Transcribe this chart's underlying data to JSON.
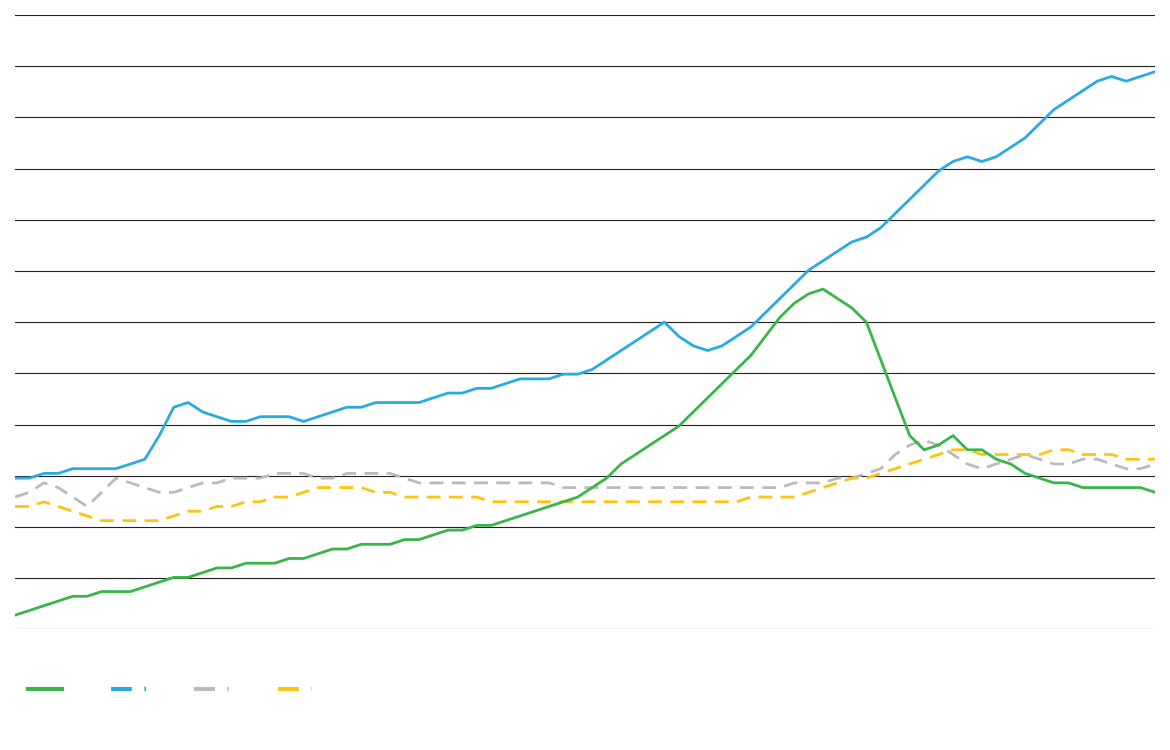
{
  "n_points": 80,
  "blue_line": [
    32,
    32,
    33,
    33,
    34,
    34,
    34,
    34,
    35,
    36,
    41,
    47,
    48,
    46,
    45,
    44,
    44,
    45,
    45,
    45,
    44,
    45,
    46,
    47,
    47,
    48,
    48,
    48,
    48,
    49,
    50,
    50,
    51,
    51,
    52,
    53,
    53,
    53,
    54,
    54,
    55,
    57,
    59,
    61,
    63,
    65,
    62,
    60,
    59,
    60,
    62,
    64,
    67,
    70,
    73,
    76,
    78,
    80,
    82,
    83,
    85,
    88,
    91,
    94,
    97,
    99,
    100,
    99,
    100,
    102,
    104,
    107,
    110,
    112,
    114,
    116,
    117,
    116,
    117,
    118
  ],
  "green_line": [
    3,
    4,
    5,
    6,
    7,
    7,
    8,
    8,
    8,
    9,
    10,
    11,
    11,
    12,
    13,
    13,
    14,
    14,
    14,
    15,
    15,
    16,
    17,
    17,
    18,
    18,
    18,
    19,
    19,
    20,
    21,
    21,
    22,
    22,
    23,
    24,
    25,
    26,
    27,
    28,
    30,
    32,
    35,
    37,
    39,
    41,
    43,
    46,
    49,
    52,
    55,
    58,
    62,
    66,
    69,
    71,
    72,
    70,
    68,
    65,
    57,
    49,
    41,
    38,
    39,
    41,
    38,
    38,
    36,
    35,
    33,
    32,
    31,
    31,
    30,
    30,
    30,
    30,
    30,
    29
  ],
  "gray_line": [
    28,
    29,
    31,
    30,
    28,
    26,
    29,
    32,
    31,
    30,
    29,
    29,
    30,
    31,
    31,
    32,
    32,
    32,
    33,
    33,
    33,
    32,
    32,
    33,
    33,
    33,
    33,
    32,
    31,
    31,
    31,
    31,
    31,
    31,
    31,
    31,
    31,
    31,
    30,
    30,
    30,
    30,
    30,
    30,
    30,
    30,
    30,
    30,
    30,
    30,
    30,
    30,
    30,
    30,
    31,
    31,
    31,
    32,
    32,
    33,
    34,
    37,
    39,
    40,
    39,
    37,
    35,
    34,
    35,
    36,
    37,
    36,
    35,
    35,
    36,
    36,
    35,
    34,
    34,
    35
  ],
  "yellow_line": [
    26,
    26,
    27,
    26,
    25,
    24,
    23,
    23,
    23,
    23,
    23,
    24,
    25,
    25,
    26,
    26,
    27,
    27,
    28,
    28,
    29,
    30,
    30,
    30,
    30,
    29,
    29,
    28,
    28,
    28,
    28,
    28,
    28,
    27,
    27,
    27,
    27,
    27,
    27,
    27,
    27,
    27,
    27,
    27,
    27,
    27,
    27,
    27,
    27,
    27,
    27,
    28,
    28,
    28,
    28,
    29,
    30,
    31,
    32,
    32,
    33,
    34,
    35,
    36,
    37,
    38,
    38,
    37,
    37,
    37,
    37,
    37,
    38,
    38,
    37,
    37,
    37,
    36,
    36,
    36
  ],
  "blue_color": "#29ABE2",
  "green_color": "#39B54A",
  "gray_color": "#BBBBBB",
  "yellow_color": "#FFC20E",
  "background_color": "#FFFFFF",
  "grid_color": "#222222",
  "line_width": 2.0,
  "ylim": [
    0,
    130
  ],
  "xlim": [
    0,
    79
  ],
  "n_gridlines": 13
}
